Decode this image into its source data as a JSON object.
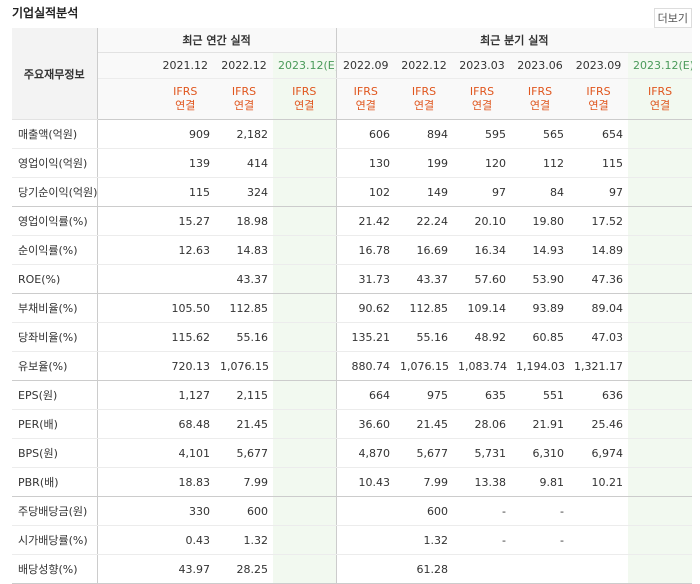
{
  "header": {
    "title": "기업실적분석",
    "more": "더보기"
  },
  "table": {
    "corner": "주요재무정보",
    "sections": [
      {
        "label": "최근 연간 실적",
        "span": 3
      },
      {
        "label": "최근 분기 실적",
        "span": 6
      }
    ],
    "periods": [
      {
        "label": "2021.12",
        "estimate": false
      },
      {
        "label": "2022.12",
        "estimate": false
      },
      {
        "label": "2023.12(E)",
        "estimate": true
      },
      {
        "label": "2022.09",
        "estimate": false
      },
      {
        "label": "2022.12",
        "estimate": false
      },
      {
        "label": "2023.03",
        "estimate": false
      },
      {
        "label": "2023.06",
        "estimate": false
      },
      {
        "label": "2023.09",
        "estimate": false
      },
      {
        "label": "2023.12(E)",
        "estimate": true
      }
    ],
    "basis": [
      [
        "IFRS",
        "연결"
      ],
      [
        "IFRS",
        "연결"
      ],
      [
        "IFRS",
        "연결"
      ],
      [
        "IFRS",
        "연결"
      ],
      [
        "IFRS",
        "연결"
      ],
      [
        "IFRS",
        "연결"
      ],
      [
        "IFRS",
        "연결"
      ],
      [
        "IFRS",
        "연결"
      ],
      [
        "IFRS",
        "연결"
      ]
    ],
    "groups": [
      {
        "rows": [
          {
            "label": "매출액(억원)",
            "values": [
              "909",
              "2,182",
              null,
              "606",
              "894",
              "595",
              "565",
              "654",
              null
            ]
          },
          {
            "label": "영업이익(억원)",
            "values": [
              "139",
              "414",
              null,
              "130",
              "199",
              "120",
              "112",
              "115",
              null
            ]
          },
          {
            "label": "당기순이익(억원)",
            "values": [
              "115",
              "324",
              null,
              "102",
              "149",
              "97",
              "84",
              "97",
              null
            ]
          }
        ]
      },
      {
        "rows": [
          {
            "label": "영업이익률(%)",
            "values": [
              "15.27",
              "18.98",
              null,
              "21.42",
              "22.24",
              "20.10",
              "19.80",
              "17.52",
              null
            ]
          },
          {
            "label": "순이익률(%)",
            "values": [
              "12.63",
              "14.83",
              null,
              "16.78",
              "16.69",
              "16.34",
              "14.93",
              "14.89",
              null
            ]
          },
          {
            "label": "ROE(%)",
            "values": [
              null,
              "43.37",
              null,
              "31.73",
              "43.37",
              "57.60",
              "53.90",
              "47.36",
              null
            ]
          }
        ]
      },
      {
        "rows": [
          {
            "label": "부채비율(%)",
            "values": [
              "105.50",
              "112.85",
              null,
              "90.62",
              "112.85",
              "109.14",
              "93.89",
              "89.04",
              null
            ]
          },
          {
            "label": "당좌비율(%)",
            "values": [
              "115.62",
              "55.16",
              null,
              "135.21",
              "55.16",
              "48.92",
              "60.85",
              "47.03",
              null
            ]
          },
          {
            "label": "유보율(%)",
            "values": [
              "720.13",
              "1,076.15",
              null,
              "880.74",
              "1,076.15",
              "1,083.74",
              "1,194.03",
              "1,321.17",
              null
            ]
          }
        ]
      },
      {
        "rows": [
          {
            "label": "EPS(원)",
            "values": [
              "1,127",
              "2,115",
              null,
              "664",
              "975",
              "635",
              "551",
              "636",
              null
            ]
          },
          {
            "label": "PER(배)",
            "values": [
              "68.48",
              "21.45",
              null,
              "36.60",
              "21.45",
              "28.06",
              "21.91",
              "25.46",
              null
            ]
          },
          {
            "label": "BPS(원)",
            "values": [
              "4,101",
              "5,677",
              null,
              "4,870",
              "5,677",
              "5,731",
              "6,310",
              "6,974",
              null
            ]
          },
          {
            "label": "PBR(배)",
            "values": [
              "18.83",
              "7.99",
              null,
              "10.43",
              "7.99",
              "13.38",
              "9.81",
              "10.21",
              null
            ]
          }
        ]
      },
      {
        "rows": [
          {
            "label": "주당배당금(원)",
            "values": [
              "330",
              "600",
              null,
              null,
              "600",
              "-",
              "-",
              null,
              null
            ]
          },
          {
            "label": "시가배당률(%)",
            "values": [
              "0.43",
              "1.32",
              null,
              null,
              "1.32",
              "-",
              "-",
              null,
              null
            ]
          },
          {
            "label": "배당성향(%)",
            "values": [
              "43.97",
              "28.25",
              null,
              null,
              "61.28",
              null,
              null,
              null,
              null
            ]
          }
        ]
      }
    ]
  }
}
